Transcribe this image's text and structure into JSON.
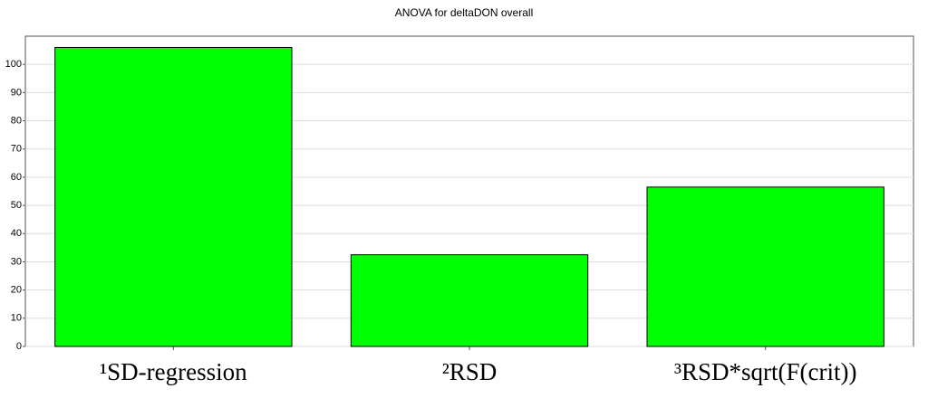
{
  "chart_data": {
    "type": "bar",
    "title": "ANOVA for deltaDON overall",
    "categories": [
      "¹SD-regression",
      "²RSD",
      "³RSD*sqrt(F(crit))"
    ],
    "values": [
      106,
      32.5,
      56.5
    ],
    "color": "#00ff00",
    "ylim": [
      0,
      110
    ],
    "yticks": [
      0,
      10,
      20,
      30,
      40,
      50,
      60,
      70,
      80,
      90,
      100
    ],
    "grid": true
  }
}
